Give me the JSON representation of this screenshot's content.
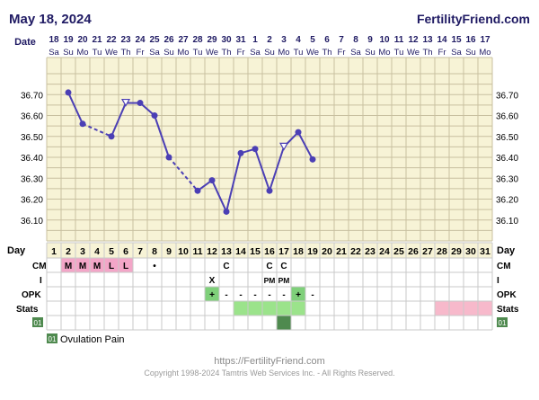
{
  "header": {
    "date": "May 18, 2024",
    "site": "FertilityFriend.com"
  },
  "labels": {
    "date_row": "Date",
    "day_row": "Day",
    "cm_row": "CM",
    "i_row": "I",
    "opk_row": "OPK",
    "stats_row": "Stats",
    "custom_code": "01",
    "legend_text": "Ovulation Pain"
  },
  "footer": {
    "url": "https://FertilityFriend.com",
    "copyright": "Copyright 1998-2024 Tamtris Web Services Inc. - All Rights Reserved."
  },
  "colors": {
    "panel_bg": "#f7f3d6",
    "grid": "#c8c0a0",
    "line": "#4b3fb5",
    "title": "#1f1a63",
    "cm_pink": "#f3a6c8",
    "stats_green": "#9be38b",
    "stats_pink": "#f7b9cb",
    "opk_green": "#7fd07a",
    "custom_green": "#4f8a4f"
  },
  "chart_data": {
    "type": "line",
    "dates": [
      "18",
      "19",
      "20",
      "21",
      "22",
      "23",
      "24",
      "25",
      "26",
      "27",
      "28",
      "29",
      "30",
      "31",
      "1",
      "2",
      "3",
      "4",
      "5",
      "6",
      "7",
      "8",
      "9",
      "10",
      "11",
      "12",
      "13",
      "14",
      "15",
      "16",
      "17"
    ],
    "weekdays": [
      "Sa",
      "Su",
      "Mo",
      "Tu",
      "We",
      "Th",
      "Fr",
      "Sa",
      "Su",
      "Mo",
      "Tu",
      "We",
      "Th",
      "Fr",
      "Sa",
      "Su",
      "Mo",
      "Tu",
      "We",
      "Th",
      "Fr",
      "Sa",
      "Su",
      "Mo",
      "Tu",
      "We",
      "Th",
      "Fr",
      "Sa",
      "Su",
      "Mo"
    ],
    "days": [
      1,
      2,
      3,
      4,
      5,
      6,
      7,
      8,
      9,
      10,
      11,
      12,
      13,
      14,
      15,
      16,
      17,
      18,
      19,
      20,
      21,
      22,
      23,
      24,
      25,
      26,
      27,
      28,
      29,
      30,
      31
    ],
    "ylim": [
      36.0,
      36.8
    ],
    "yticks": [
      "36.70",
      "36.60",
      "36.50",
      "36.40",
      "36.30",
      "36.20",
      "36.10"
    ],
    "temperatures": [
      {
        "day": 2,
        "temp": 36.71,
        "marker": "circle"
      },
      {
        "day": 3,
        "temp": 36.56,
        "marker": "circle"
      },
      {
        "day": 5,
        "temp": 36.5,
        "marker": "circle"
      },
      {
        "day": 6,
        "temp": 36.66,
        "marker": "triangle"
      },
      {
        "day": 7,
        "temp": 36.66,
        "marker": "circle"
      },
      {
        "day": 8,
        "temp": 36.6,
        "marker": "circle"
      },
      {
        "day": 9,
        "temp": 36.4,
        "marker": "circle"
      },
      {
        "day": 11,
        "temp": 36.24,
        "marker": "circle"
      },
      {
        "day": 12,
        "temp": 36.29,
        "marker": "circle"
      },
      {
        "day": 13,
        "temp": 36.14,
        "marker": "circle"
      },
      {
        "day": 14,
        "temp": 36.42,
        "marker": "circle"
      },
      {
        "day": 15,
        "temp": 36.44,
        "marker": "circle"
      },
      {
        "day": 16,
        "temp": 36.24,
        "marker": "circle"
      },
      {
        "day": 17,
        "temp": 36.45,
        "marker": "triangle"
      },
      {
        "day": 18,
        "temp": 36.52,
        "marker": "circle"
      },
      {
        "day": 19,
        "temp": 36.39,
        "marker": "circle"
      }
    ],
    "dashed_segments": [
      [
        3,
        5
      ],
      [
        9,
        11
      ]
    ],
    "cm_row": [
      {
        "day": 2,
        "text": "M",
        "pink": true
      },
      {
        "day": 3,
        "text": "M",
        "pink": true
      },
      {
        "day": 4,
        "text": "M",
        "pink": true
      },
      {
        "day": 5,
        "text": "L",
        "pink": true
      },
      {
        "day": 6,
        "text": "L",
        "pink": true
      },
      {
        "day": 8,
        "text": "•",
        "pink": false
      },
      {
        "day": 13,
        "text": "C",
        "pink": false
      },
      {
        "day": 16,
        "text": "C",
        "pink": false
      },
      {
        "day": 17,
        "text": "C",
        "pink": false
      }
    ],
    "i_row": [
      {
        "day": 12,
        "text": "X"
      },
      {
        "day": 16,
        "text": "PM"
      },
      {
        "day": 17,
        "text": "PM"
      }
    ],
    "opk_row": [
      {
        "day": 12,
        "text": "+",
        "positive": true
      },
      {
        "day": 13,
        "text": "-",
        "positive": false
      },
      {
        "day": 14,
        "text": "-",
        "positive": false
      },
      {
        "day": 15,
        "text": "-",
        "positive": false
      },
      {
        "day": 16,
        "text": "-",
        "positive": false
      },
      {
        "day": 17,
        "text": "-",
        "positive": false
      },
      {
        "day": 18,
        "text": "+",
        "positive": true
      },
      {
        "day": 19,
        "text": "-",
        "positive": false
      }
    ],
    "stats_green_days": [
      14,
      15,
      16,
      17,
      18
    ],
    "stats_pink_days": [
      28,
      29,
      30,
      31
    ],
    "custom_days": [
      17
    ]
  }
}
